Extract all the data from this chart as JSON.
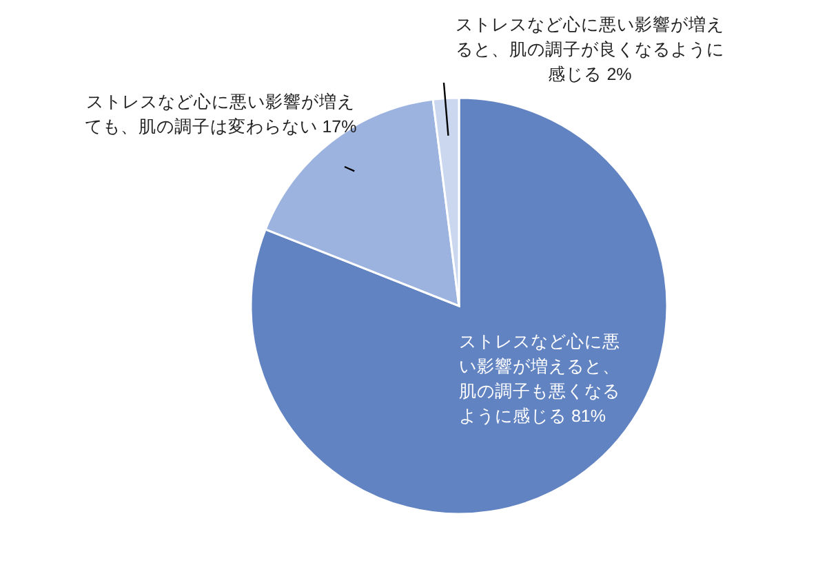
{
  "chart_data": {
    "type": "pie",
    "categories": [
      "ストレスなど心に悪い影響が増えると、肌の調子も悪くなるように感じる",
      "ストレスなど心に悪い影響が増えても、肌の調子は変わらない",
      "ストレスなど心に悪い影響が増えると、肌の調子が良くなるように感じる"
    ],
    "values": [
      81,
      17,
      2
    ],
    "value_labels": [
      "81%",
      "17%",
      "2%"
    ],
    "colors": [
      "#6283c2",
      "#9cb3e0",
      "#cad7ee"
    ]
  }
}
